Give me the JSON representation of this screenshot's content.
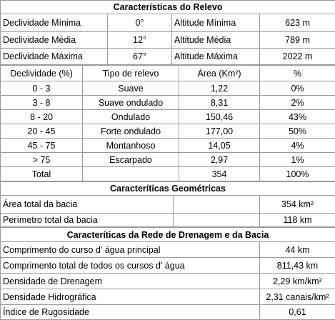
{
  "relief": {
    "title": "Características do Relevo",
    "summary": [
      [
        "Declividade Mínima",
        "0°",
        "Altitude Mínima",
        "623 m"
      ],
      [
        "Declividade Média",
        "12°",
        "Altitude Média",
        "789 m"
      ],
      [
        "Declividade Máxima",
        "67°",
        "Altitude Máxima",
        "2022 m"
      ]
    ],
    "header": [
      "Declividade (%)",
      "Tipo de relevo",
      "Área (Km²)",
      "%"
    ],
    "rows": [
      [
        "0 - 3",
        "Suave",
        "1,22",
        "0%"
      ],
      [
        "3 - 8",
        "Suave ondulado",
        "8,31",
        "2%"
      ],
      [
        "8 - 20",
        "Ondulado",
        "150,46",
        "43%"
      ],
      [
        "20 - 45",
        "Forte ondulado",
        "177,00",
        "50%"
      ],
      [
        "45 - 75",
        "Montanhoso",
        "14,05",
        "4%"
      ],
      [
        "> 75",
        "Escarpado",
        "2,97",
        "1%"
      ]
    ],
    "total": {
      "label": "Total",
      "area": "354",
      "percent": "100%"
    }
  },
  "geometry": {
    "title": "Caracteríticas Geométricas",
    "rows": [
      [
        "Área total da bacia",
        "354 km²"
      ],
      [
        "Perímetro total da bacia",
        "118 km"
      ]
    ]
  },
  "drainage": {
    "title": "Caracteríticas da Rede de Drenagem e da Bacia",
    "rows": [
      [
        "Comprimento do curso d' água principal",
        "44 km"
      ],
      [
        "Comprimento total de todos os cursos d' água",
        "811,43 km"
      ],
      [
        "Densidade de Drenagem",
        "2,29 km/km²"
      ],
      [
        "Densidade Hidrográfica",
        "2,31 canais/km²"
      ],
      [
        "Índice de Rugosidade",
        "0,61"
      ]
    ]
  }
}
